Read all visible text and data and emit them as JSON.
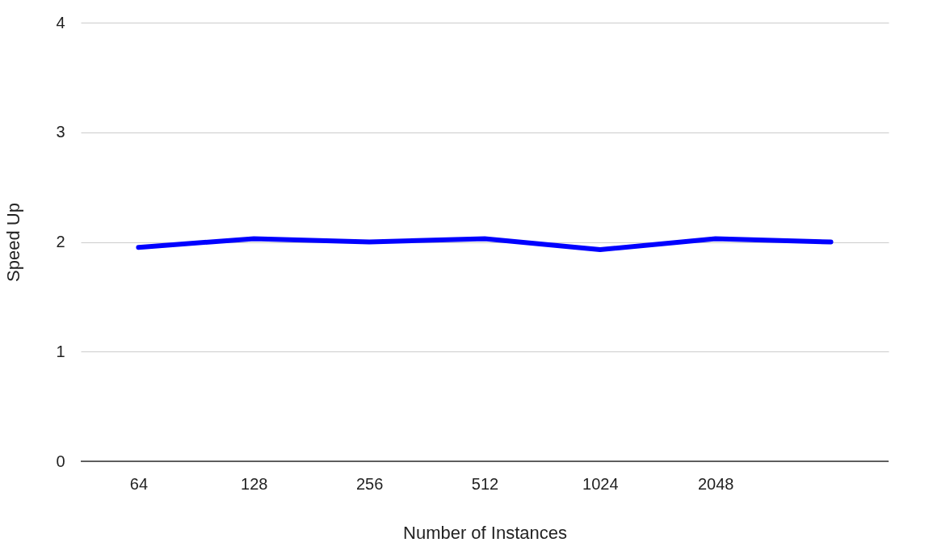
{
  "chart_data": {
    "type": "line",
    "xlabel": "Number of Instances",
    "ylabel": "Speed Up",
    "categories": [
      "64",
      "128",
      "256",
      "512",
      "1024",
      "2048",
      null
    ],
    "series": [
      {
        "color": "#0000ff",
        "values": [
          1.95,
          2.03,
          2.0,
          2.03,
          1.93,
          2.03,
          2.0
        ]
      }
    ],
    "ylim": [
      0,
      4
    ],
    "yticks": [
      0,
      1,
      2,
      3,
      4
    ],
    "grid": "y",
    "marker": "none",
    "line_style": "solid"
  }
}
